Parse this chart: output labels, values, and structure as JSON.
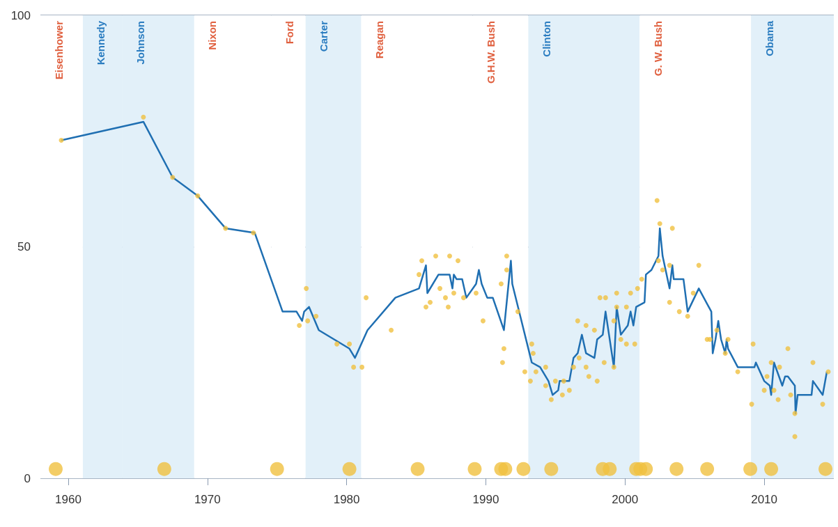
{
  "chart_data": {
    "type": "line",
    "xlim": [
      1958,
      2015
    ],
    "xticks": [
      1960,
      1970,
      1980,
      1990,
      2000,
      2010
    ],
    "ylim": [
      0,
      100
    ],
    "yticks": [
      0,
      50,
      100
    ],
    "grid": "y",
    "series": [
      {
        "color": "#1f6fb2",
        "marker": "none",
        "x": [
          1959.5,
          1965.4,
          1967.5,
          1969.3,
          1971.3,
          1973.4,
          1975.4,
          1976.4,
          1976.8,
          1976.95,
          1977.3,
          1978.0,
          1980.2,
          1980.6,
          1981.5,
          1983.5,
          1985.2,
          1985.7,
          1985.8,
          1986.6,
          1987.4,
          1987.6,
          1987.7,
          1987.9,
          1988.3,
          1988.6,
          1989.3,
          1989.5,
          1989.7,
          1990.1,
          1990.5,
          1991.3,
          1991.8,
          1991.9,
          1993.3,
          1993.9,
          1994.5,
          1994.8,
          1995.2,
          1995.3,
          1996.0,
          1996.3,
          1996.6,
          1996.9,
          1997.2,
          1997.8,
          1998.0,
          1998.4,
          1998.6,
          1999.2,
          1999.4,
          1999.7,
          2000.2,
          2000.4,
          2000.6,
          2000.8,
          2001.4,
          2001.5,
          2001.9,
          2002.4,
          2002.5,
          2002.7,
          2003.2,
          2003.4,
          2003.5,
          2004.2,
          2004.5,
          2005.3,
          2006.2,
          2006.3,
          2006.5,
          2006.7,
          2006.9,
          2007.2,
          2007.3,
          2007.4,
          2008.1,
          2009.3,
          2009.4,
          2010.0,
          2010.4,
          2010.5,
          2010.7,
          2011.3,
          2011.5,
          2011.7,
          2012.2,
          2012.25,
          2012.4,
          2013.4,
          2013.5,
          2014.2,
          2014.5
        ],
        "values": [
          73,
          77,
          65,
          61,
          54,
          53,
          36,
          36,
          34,
          36,
          37,
          32,
          28,
          26,
          32,
          39,
          41,
          46,
          40,
          44,
          44,
          41,
          44,
          43,
          43,
          39,
          42,
          45,
          42,
          39,
          39,
          32,
          47,
          42,
          25,
          24,
          21,
          18,
          19,
          21,
          21,
          26,
          27,
          31,
          27,
          26,
          30,
          31,
          36,
          24,
          37,
          31,
          33,
          36,
          33,
          37,
          38,
          44,
          45,
          48,
          54,
          48,
          41,
          46,
          43,
          43,
          36,
          41,
          36,
          27,
          30,
          34,
          30,
          27,
          30,
          28,
          24,
          24,
          25,
          21,
          20,
          18,
          25,
          20,
          22,
          22,
          20,
          14,
          18,
          18,
          21,
          18,
          23
        ]
      },
      {
        "type": "scatter",
        "color": "#f0c040",
        "marker": "circle",
        "x": [
          1959.5,
          1965.4,
          1967.5,
          1969.3,
          1971.3,
          1973.3,
          1977.1,
          1976.6,
          1977.2,
          1977.8,
          1979.3,
          1980.2,
          1980.5,
          1981.1,
          1981.4,
          1983.2,
          1985.2,
          1985.4,
          1985.7,
          1986.0,
          1986.4,
          1986.7,
          1987.1,
          1987.3,
          1987.4,
          1987.7,
          1988.0,
          1988.4,
          1989.3,
          1989.8,
          1991.1,
          1991.5,
          1991.5,
          1991.3,
          1991.2,
          1992.3,
          1993.3,
          1993.4,
          1992.8,
          1993.2,
          1993.6,
          1994.3,
          1994.3,
          1994.7,
          1995.5,
          1995.0,
          1995.6,
          1996.0,
          1996.3,
          1996.6,
          1996.7,
          1997.2,
          1997.2,
          1997.4,
          1997.8,
          1998.0,
          1998.2,
          1998.5,
          1998.6,
          1999.2,
          1999.2,
          1999.4,
          1999.4,
          1999.7,
          2000.1,
          2000.7,
          2000.1,
          2000.4,
          2000.9,
          2001.2,
          2002.3,
          2002.5,
          2003.4,
          2005.3,
          2002.4,
          2002.7,
          2003.2,
          2003.2,
          2003.9,
          2004.5,
          2004.9,
          2005.9,
          2006.1,
          2006.6,
          2007.4,
          2007.2,
          2008.1,
          2009.2,
          2009.1,
          2010.0,
          2010.2,
          2010.5,
          2010.7,
          2011.0,
          2011.1,
          2011.7,
          2011.9,
          2012.2,
          2012.2,
          2013.5,
          2014.2,
          2014.6
        ],
        "values": [
          73,
          78,
          65,
          61,
          54,
          53,
          41,
          33,
          34,
          35,
          29,
          29,
          24,
          24,
          39,
          32,
          44,
          47,
          37,
          38,
          48,
          41,
          39,
          37,
          48,
          40,
          47,
          39,
          40,
          34,
          42,
          48,
          45,
          28,
          25,
          36,
          29,
          27,
          23,
          21,
          23,
          24,
          20,
          17,
          18,
          21,
          21,
          19,
          24,
          34,
          26,
          33,
          24,
          22,
          32,
          21,
          39,
          25,
          39,
          24,
          34,
          40,
          37,
          30,
          29,
          29,
          37,
          40,
          41,
          43,
          60,
          55,
          54,
          46,
          47,
          45,
          46,
          38,
          36,
          35,
          40,
          30,
          30,
          32,
          30,
          27,
          23,
          29,
          16,
          19,
          22,
          25,
          19,
          17,
          24,
          28,
          18,
          14,
          9,
          25,
          16,
          23
        ]
      },
      {
        "type": "bubble",
        "color": "#f0c040",
        "x": [
          1959.1,
          1966.9,
          1975.0,
          1980.2,
          1985.1,
          1989.2,
          1991.1,
          1991.4,
          1992.7,
          1994.7,
          1998.4,
          1998.9,
          2000.8,
          2001.1,
          2001.5,
          2003.7,
          2005.9,
          2009.0,
          2010.5,
          2014.4
        ],
        "values": [
          2,
          2,
          2,
          2,
          2,
          2,
          2,
          2,
          2,
          2,
          2,
          2,
          2,
          2,
          2,
          2,
          2,
          2,
          2,
          2
        ],
        "sizes": [
          1,
          1,
          1,
          1,
          1,
          1,
          1,
          1,
          1,
          1,
          1,
          1,
          1,
          1,
          1,
          1,
          1,
          1,
          1,
          1
        ]
      }
    ],
    "bands": [
      {
        "axis": "x",
        "from": 1958,
        "to": 1961.05,
        "label": "Eisenhower",
        "color": "#ffffff"
      },
      {
        "axis": "x",
        "from": 1961.05,
        "to": 1963.9,
        "label": "Kennedy",
        "color": "#e2f0f9"
      },
      {
        "axis": "x",
        "from": 1963.9,
        "to": 1969.05,
        "label": "Johnson",
        "color": "#e2f0f9"
      },
      {
        "axis": "x",
        "from": 1969.05,
        "to": 1974.6,
        "label": "Nixon",
        "color": "#ffffff"
      },
      {
        "axis": "x",
        "from": 1974.6,
        "to": 1977.05,
        "label": "Ford",
        "color": "#ffffff"
      },
      {
        "axis": "x",
        "from": 1977.05,
        "to": 1981.05,
        "label": "Carter",
        "color": "#e2f0f9"
      },
      {
        "axis": "x",
        "from": 1981.05,
        "to": 1989.05,
        "label": "Reagan",
        "color": "#ffffff"
      },
      {
        "axis": "x",
        "from": 1989.05,
        "to": 1993.05,
        "label": "G.H.W. Bush",
        "color": "#ffffff"
      },
      {
        "axis": "x",
        "from": 1993.05,
        "to": 2001.05,
        "label": "Clinton",
        "color": "#e2f0f9"
      },
      {
        "axis": "x",
        "from": 2001.05,
        "to": 2009.05,
        "label": "G. W. Bush",
        "color": "#ffffff"
      },
      {
        "axis": "x",
        "from": 2009.05,
        "to": 2015,
        "label": "Obama",
        "color": "#e2f0f9"
      }
    ]
  }
}
